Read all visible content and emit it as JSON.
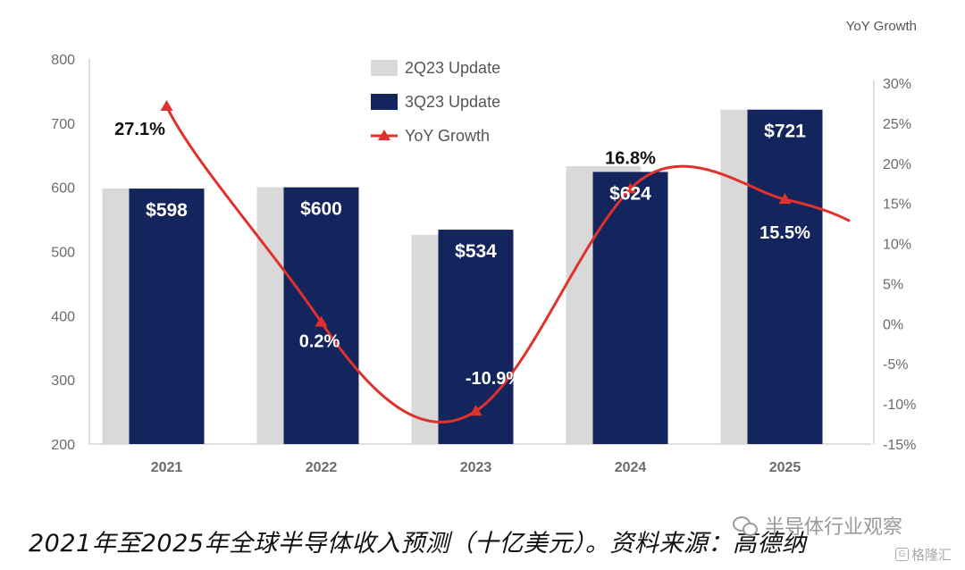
{
  "chart_data": {
    "type": "bar",
    "categories": [
      "2021",
      "2022",
      "2023",
      "2024",
      "2025"
    ],
    "series": [
      {
        "name": "2Q23 Update",
        "kind": "bar",
        "color": "#d9d9d9",
        "values": [
          598,
          600,
          526,
          633,
          721
        ]
      },
      {
        "name": "3Q23 Update",
        "kind": "bar",
        "color": "#13255c",
        "values": [
          598,
          600,
          534,
          624,
          721
        ]
      },
      {
        "name": "YoY Growth",
        "kind": "line",
        "axis": "right",
        "color": "#e0312c",
        "values": [
          27.1,
          0.2,
          -10.9,
          16.8,
          15.5
        ]
      }
    ],
    "bar_labels": [
      "$598",
      "$600",
      "$534",
      "$624",
      "$721"
    ],
    "growth_labels": [
      "27.1%",
      "0.2%",
      "-10.9%",
      "16.8%",
      "15.5%"
    ],
    "ylim": [
      200,
      800
    ],
    "yticks": [
      200,
      300,
      400,
      500,
      600,
      700,
      800
    ],
    "y2lim": [
      -15,
      30
    ],
    "y2ticks": [
      "-15%",
      "-10%",
      "-5%",
      "0%",
      "5%",
      "10%",
      "15%",
      "20%",
      "25%",
      "30%"
    ],
    "y2label": "YoY Growth",
    "legend_placement": "top-center",
    "grid": false
  },
  "caption": "2021年至2025年全球半导体收入预测（十亿美元）。资料来源：高德纳",
  "watermark": "半导体行业观察",
  "badge": "格隆汇"
}
